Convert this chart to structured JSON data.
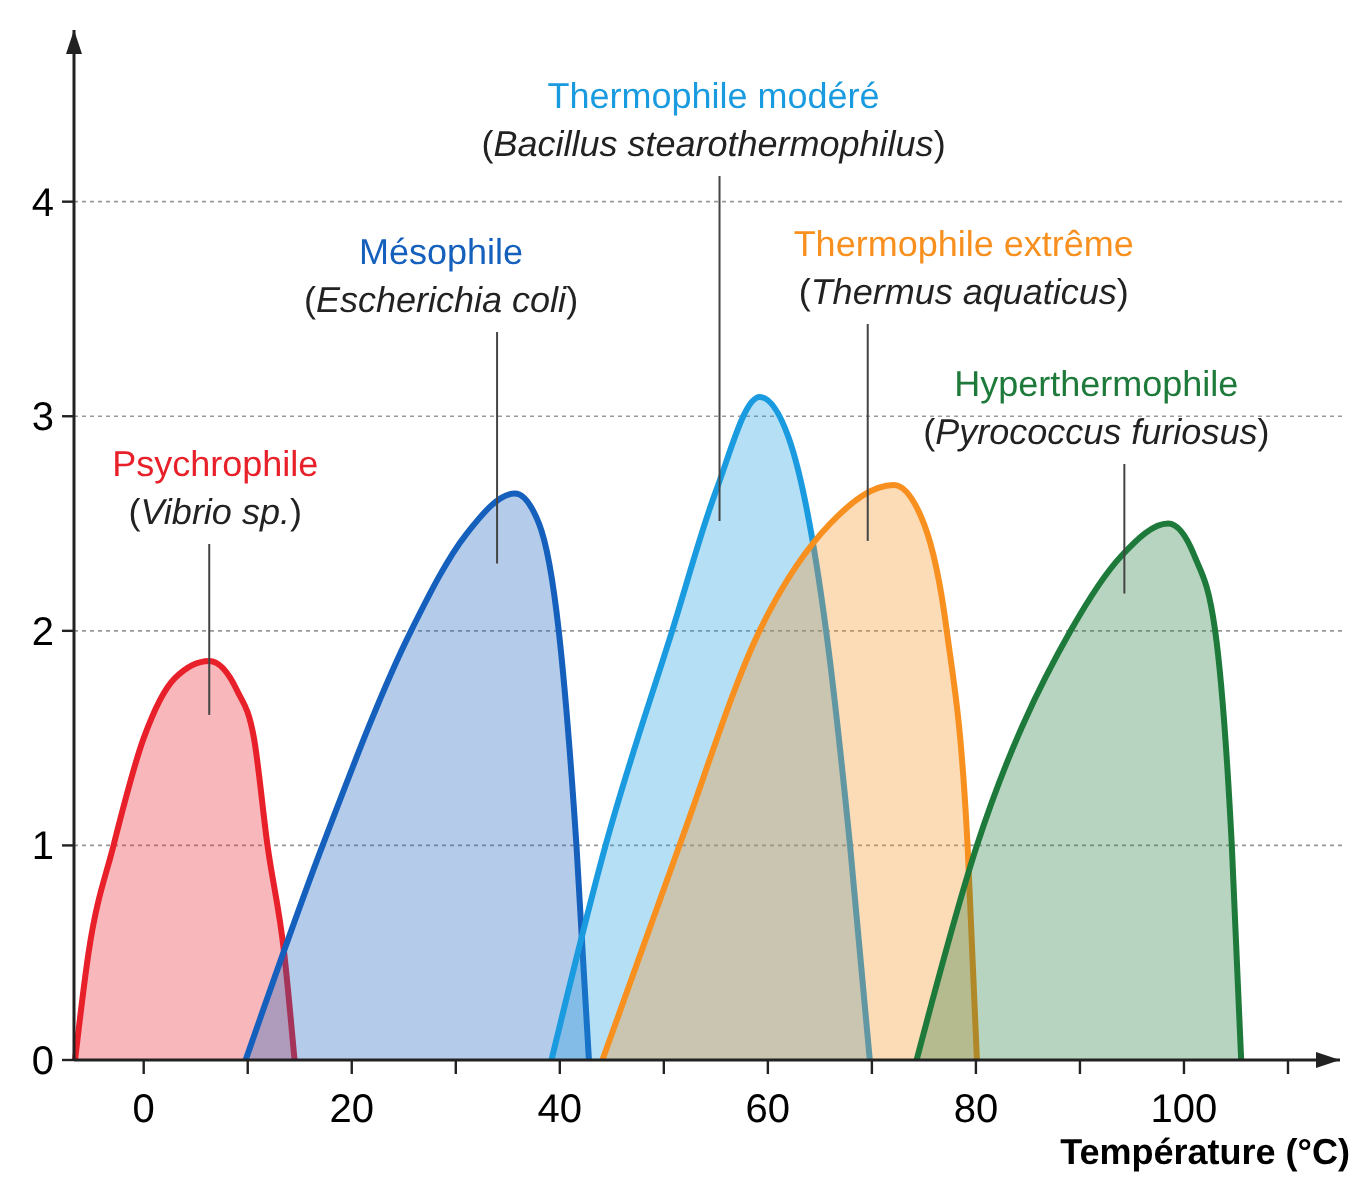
{
  "chart_data": {
    "type": "area",
    "xlabel": "Température (°C)",
    "xlim": [
      -6.7,
      115
    ],
    "ylim": [
      0,
      4.8
    ],
    "xticks": [
      0,
      {
        "value": 10,
        "label": null
      },
      20,
      {
        "value": 30,
        "label": null
      },
      40,
      {
        "value": 50,
        "label": null
      },
      60,
      {
        "value": 70,
        "label": null
      },
      80,
      {
        "value": 90,
        "label": null
      },
      100,
      {
        "value": 110,
        "label": null
      }
    ],
    "yticks": [
      0,
      1,
      2,
      3,
      4
    ],
    "grid": "y",
    "legend": false,
    "series": [
      {
        "name": "Psychrophile",
        "color": "#e8202a",
        "x": [
          -6.6,
          -5.3,
          -2.9,
          0,
          3,
          6.3,
          9,
          10.6,
          11.9,
          13.5,
          14.5
        ],
        "values": [
          0,
          0.5,
          1,
          1.5,
          1.78,
          1.86,
          1.72,
          1.5,
          1,
          0.5,
          0
        ]
      },
      {
        "name": "Mésophile",
        "color": "#1560bd",
        "x": [
          9.8,
          17.2,
          25.7,
          31,
          35.7,
          38,
          39.9,
          41.6,
          42.8
        ],
        "values": [
          0,
          1,
          2,
          2.45,
          2.64,
          2.5,
          2,
          1,
          0
        ]
      },
      {
        "name": "Thermophile modéré",
        "color": "#1a9be0",
        "x": [
          39.2,
          44.4,
          50.8,
          55,
          59.2,
          62,
          65.6,
          67.9,
          69.8
        ],
        "values": [
          0,
          1,
          2,
          2.65,
          3.09,
          2.9,
          2,
          1,
          0
        ]
      },
      {
        "name": "Thermophile extrême",
        "color": "#f7901e",
        "x": [
          44.1,
          51.5,
          59.2,
          66,
          72.1,
          75,
          77.2,
          79.2,
          80.1
        ],
        "values": [
          0,
          1,
          2,
          2.5,
          2.68,
          2.5,
          2,
          1,
          0
        ]
      },
      {
        "name": "Hyperthermophile",
        "color": "#1e7a3a",
        "x": [
          74.3,
          80.1,
          89.1,
          94,
          98.5,
          101,
          103,
          104.6,
          105.5
        ],
        "values": [
          0,
          1,
          2,
          2.35,
          2.5,
          2.35,
          2,
          1,
          0
        ]
      }
    ],
    "annotations": [
      "(Vibrio sp.)",
      "(Escherichia coli)",
      "(Bacillus stearothermophilus)",
      "(Thermus aquaticus)",
      "(Pyrococcus furiosus)"
    ]
  }
}
